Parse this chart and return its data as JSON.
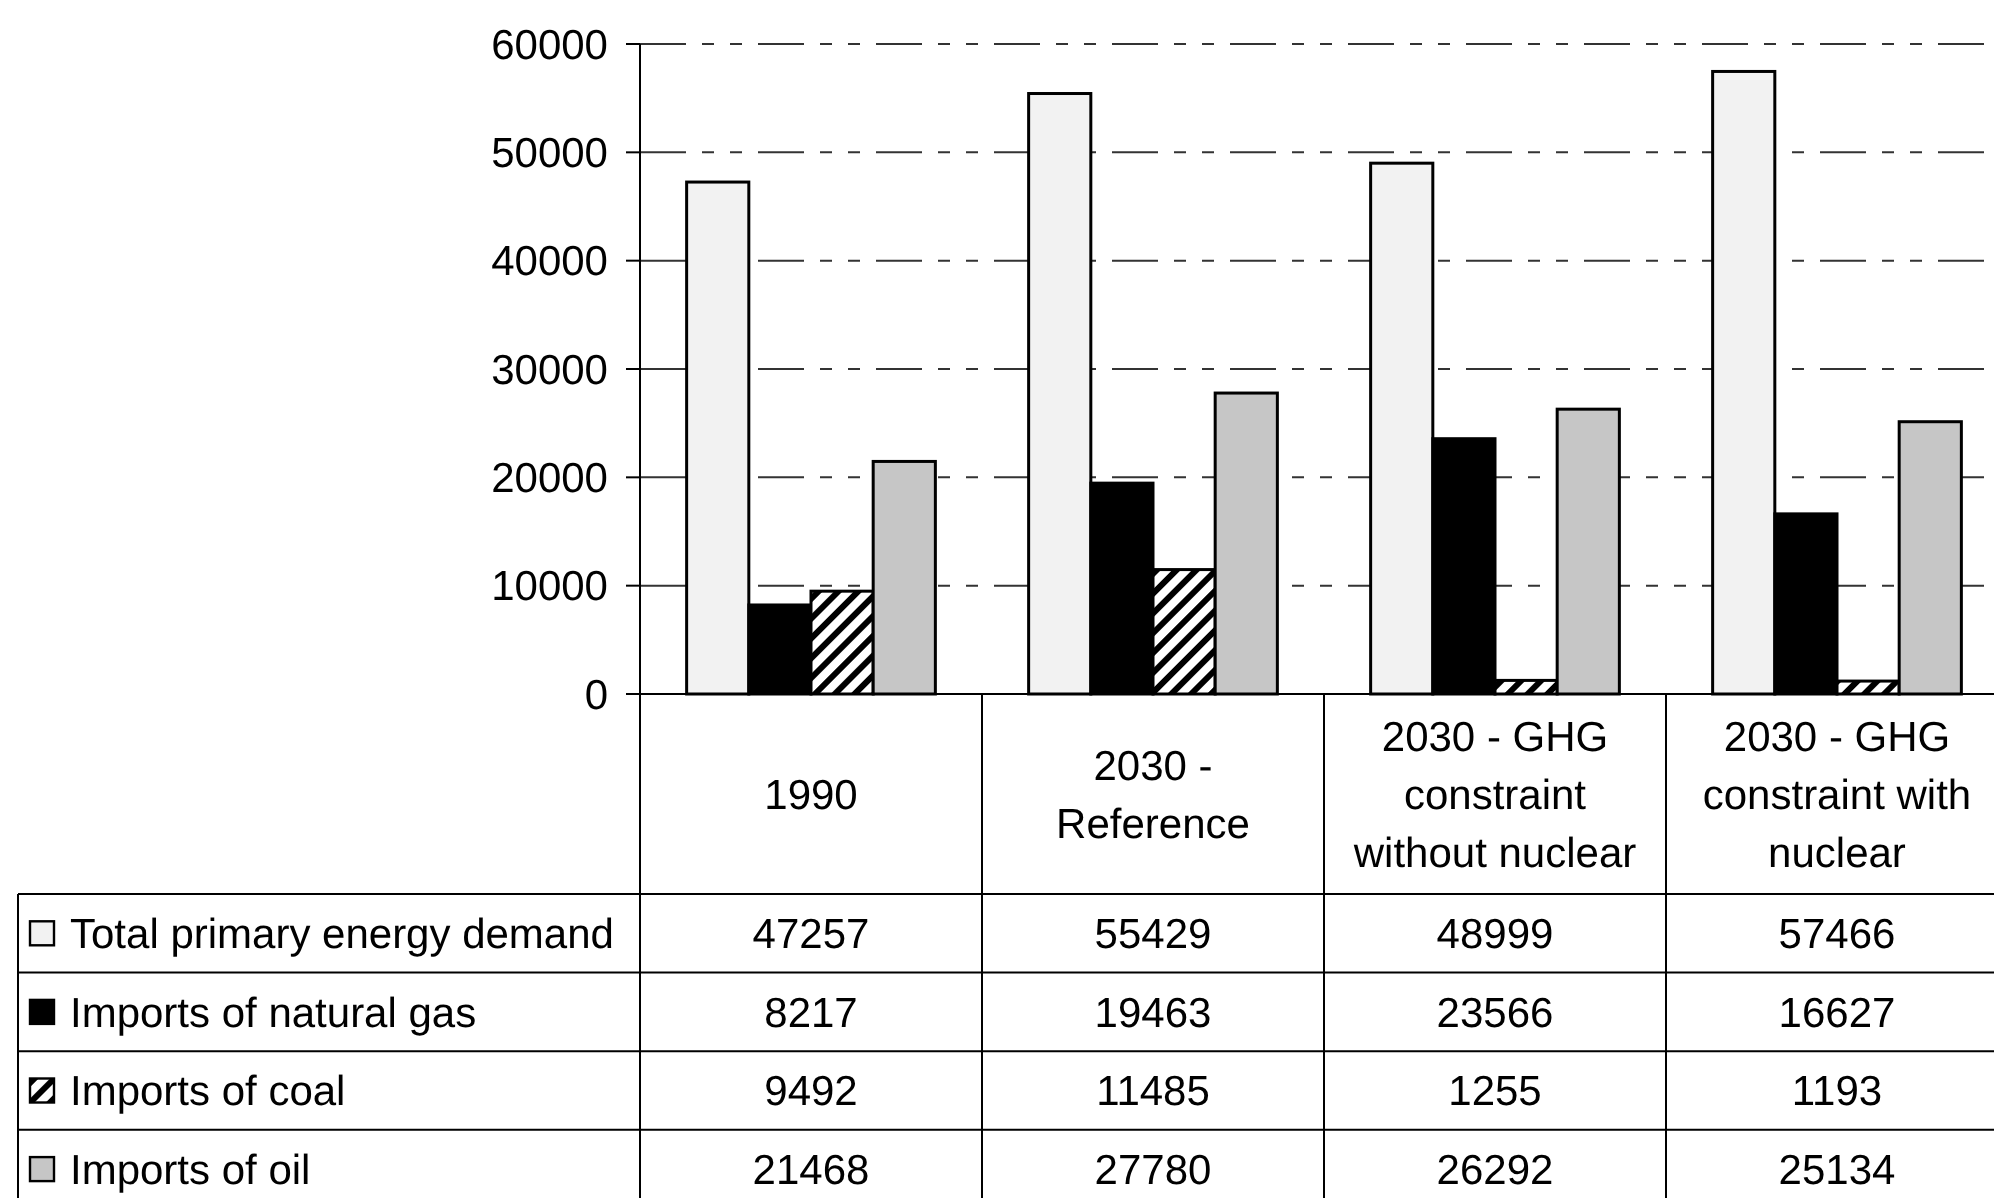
{
  "chart_data": {
    "type": "bar",
    "categories": [
      "1990",
      "2030 - Reference",
      "2030 - GHG constraint without nuclear",
      "2030 - GHG constraint with nuclear"
    ],
    "series": [
      {
        "name": "Total primary energy demand",
        "color": "#f2f2f2",
        "values": [
          47257,
          55429,
          48999,
          57466
        ]
      },
      {
        "name": "Imports of natural gas",
        "color": "#000000",
        "values": [
          8217,
          19463,
          23566,
          16627
        ]
      },
      {
        "name": "Imports of coal",
        "color": "#000000",
        "values": [
          9492,
          11485,
          1255,
          1193
        ]
      },
      {
        "name": "Imports of oil",
        "color": "#c6c6c6",
        "values": [
          21468,
          27780,
          26292,
          25134
        ]
      }
    ],
    "ylim": [
      0,
      60000
    ],
    "yticks": [
      0,
      10000,
      20000,
      30000,
      40000,
      50000,
      60000
    ],
    "grid": "y",
    "data_labels": true,
    "legend": "bottom"
  }
}
